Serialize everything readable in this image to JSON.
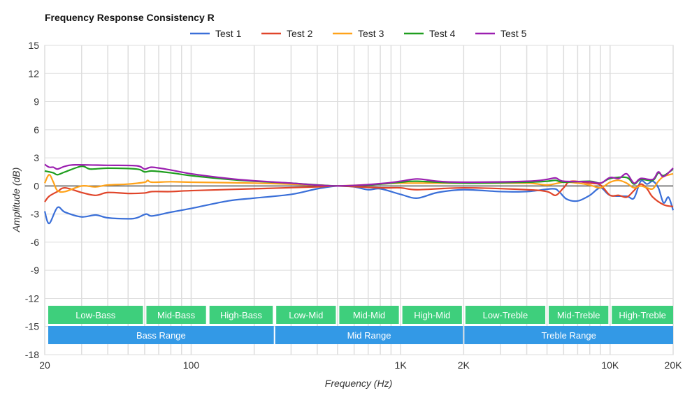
{
  "chart_data": {
    "type": "line",
    "title": "Frequency Response Consistency R",
    "xlabel": "Frequency (Hz)",
    "ylabel": "Amplitude (dB)",
    "x_scale": "log",
    "xlim": [
      20,
      20000
    ],
    "ylim": [
      -18,
      15
    ],
    "grid": true,
    "legend_position": "top",
    "x_ticks": [
      {
        "value": 20,
        "label": "20"
      },
      {
        "value": 100,
        "label": "100"
      },
      {
        "value": 1000,
        "label": "1K"
      },
      {
        "value": 2000,
        "label": "2K"
      },
      {
        "value": 10000,
        "label": "10K"
      },
      {
        "value": 20000,
        "label": "20K"
      }
    ],
    "y_ticks": [
      15,
      12,
      9,
      6,
      3,
      0,
      -3,
      -6,
      -9,
      -12,
      -15,
      -18
    ],
    "bands": [
      {
        "label": "Low-Bass",
        "from": 20,
        "to": 60
      },
      {
        "label": "Mid-Bass",
        "from": 60,
        "to": 120
      },
      {
        "label": "High-Bass",
        "from": 120,
        "to": 250
      },
      {
        "label": "Low-Mid",
        "from": 250,
        "to": 500
      },
      {
        "label": "Mid-Mid",
        "from": 500,
        "to": 1000
      },
      {
        "label": "High-Mid",
        "from": 1000,
        "to": 2000
      },
      {
        "label": "Low-Treble",
        "from": 2000,
        "to": 5000
      },
      {
        "label": "Mid-Treble",
        "from": 5000,
        "to": 10000
      },
      {
        "label": "High-Treble",
        "from": 10000,
        "to": 20000
      }
    ],
    "ranges": [
      {
        "label": "Bass Range",
        "from": 20,
        "to": 250
      },
      {
        "label": "Mid Range",
        "from": 250,
        "to": 2000
      },
      {
        "label": "Treble Range",
        "from": 2000,
        "to": 20000
      }
    ],
    "band_color": "#3ecf7c",
    "range_color": "#3399e6",
    "series": [
      {
        "name": "Test 1",
        "color": "#3a6fd8",
        "x": [
          20,
          21,
          23,
          25,
          30,
          35,
          40,
          50,
          55,
          61,
          65,
          80,
          100,
          150,
          200,
          300,
          400,
          500,
          600,
          700,
          800,
          1000,
          1200,
          1500,
          2000,
          3000,
          4000,
          5300,
          5700,
          6200,
          7000,
          8000,
          9000,
          10000,
          12000,
          13000,
          14000,
          15000,
          16000,
          17000,
          18000,
          19000,
          20000
        ],
        "y": [
          -2.7,
          -4.0,
          -2.3,
          -2.8,
          -3.3,
          -3.1,
          -3.4,
          -3.5,
          -3.4,
          -3.0,
          -3.2,
          -2.8,
          -2.4,
          -1.6,
          -1.3,
          -0.9,
          -0.3,
          0,
          -0.1,
          -0.4,
          -0.3,
          -0.9,
          -1.3,
          -0.7,
          -0.4,
          -0.6,
          -0.6,
          -0.3,
          -0.6,
          -1.4,
          -1.6,
          -1.0,
          -0.2,
          -1.0,
          -1.1,
          -1.3,
          0.5,
          0.2,
          0.5,
          -0.2,
          -1.8,
          -1.2,
          -2.6
        ]
      },
      {
        "name": "Test 2",
        "color": "#e0452a",
        "x": [
          20,
          21,
          23,
          25,
          30,
          35,
          40,
          50,
          60,
          65,
          80,
          100,
          200,
          400,
          500,
          800,
          1000,
          1200,
          2000,
          4000,
          5000,
          5500,
          6000,
          6500,
          8000,
          9000,
          10000,
          11000,
          12000,
          13000,
          14000,
          15000,
          16000,
          18000,
          20000
        ],
        "y": [
          -1.7,
          -1.1,
          -0.6,
          -0.2,
          -0.7,
          -1.0,
          -0.7,
          -0.8,
          -0.75,
          -0.6,
          -0.6,
          -0.5,
          -0.3,
          -0.1,
          0,
          -0.2,
          -0.2,
          -0.4,
          -0.2,
          -0.4,
          -0.6,
          -1.0,
          -0.2,
          0.5,
          0.3,
          0.1,
          -1.0,
          -1.0,
          -1.2,
          -0.5,
          0.2,
          -0.3,
          -1.2,
          -2.0,
          -2.2
        ]
      },
      {
        "name": "Test 3",
        "color": "#ffa31a",
        "x": [
          20,
          21,
          22,
          23,
          25,
          30,
          35,
          40,
          50,
          60,
          62,
          65,
          80,
          100,
          200,
          400,
          500,
          800,
          1000,
          2000,
          4000,
          5000,
          6000,
          7000,
          8000,
          9000,
          10000,
          11000,
          12000,
          13000,
          14000,
          15000,
          16000,
          17000,
          18000,
          20000
        ],
        "y": [
          0.3,
          1.2,
          0.4,
          -0.5,
          -0.6,
          0,
          -0.1,
          0.1,
          0.2,
          0.4,
          0.6,
          0.4,
          0.45,
          0.4,
          0.3,
          0.1,
          0,
          0.2,
          0.3,
          0.3,
          0.3,
          0.1,
          0.4,
          0.3,
          0.1,
          -0.2,
          0.4,
          0.6,
          0.3,
          -0.2,
          0,
          -0.2,
          -0.3,
          0.5,
          1.0,
          1.3
        ]
      },
      {
        "name": "Test 4",
        "color": "#1f9e1f",
        "x": [
          20,
          21,
          22,
          23,
          25,
          30,
          33,
          40,
          55,
          60,
          65,
          80,
          100,
          150,
          200,
          300,
          500,
          800,
          1000,
          1200,
          2000,
          4000,
          5000,
          5500,
          6000,
          8000,
          9000,
          10000,
          12000,
          13000,
          14000,
          16000,
          17000,
          18000,
          20000
        ],
        "y": [
          1.6,
          1.5,
          1.4,
          1.2,
          1.5,
          2.1,
          1.8,
          1.9,
          1.8,
          1.5,
          1.6,
          1.4,
          1.1,
          0.7,
          0.5,
          0.3,
          0,
          0.2,
          0.4,
          0.5,
          0.3,
          0.4,
          0.5,
          0.6,
          0.4,
          0.5,
          0.3,
          0.8,
          0.9,
          0.2,
          0.7,
          0.6,
          1.4,
          1.1,
          1.8
        ]
      },
      {
        "name": "Test 5",
        "color": "#9b1fb0",
        "x": [
          20,
          21,
          22,
          23,
          25,
          28,
          40,
          55,
          60,
          65,
          80,
          100,
          150,
          200,
          300,
          500,
          800,
          1000,
          1200,
          1500,
          2000,
          4000,
          5000,
          5500,
          6000,
          8000,
          9000,
          10000,
          11000,
          12000,
          13000,
          14000,
          16000,
          17000,
          18000,
          20000
        ],
        "y": [
          2.3,
          2.0,
          2.0,
          1.8,
          2.1,
          2.25,
          2.2,
          2.15,
          1.8,
          2.0,
          1.7,
          1.3,
          0.8,
          0.55,
          0.3,
          0,
          0.25,
          0.5,
          0.75,
          0.5,
          0.4,
          0.5,
          0.7,
          0.85,
          0.5,
          0.45,
          0.3,
          0.9,
          0.8,
          1.3,
          0.3,
          0.8,
          0.7,
          1.5,
          1.0,
          1.9
        ]
      }
    ]
  }
}
